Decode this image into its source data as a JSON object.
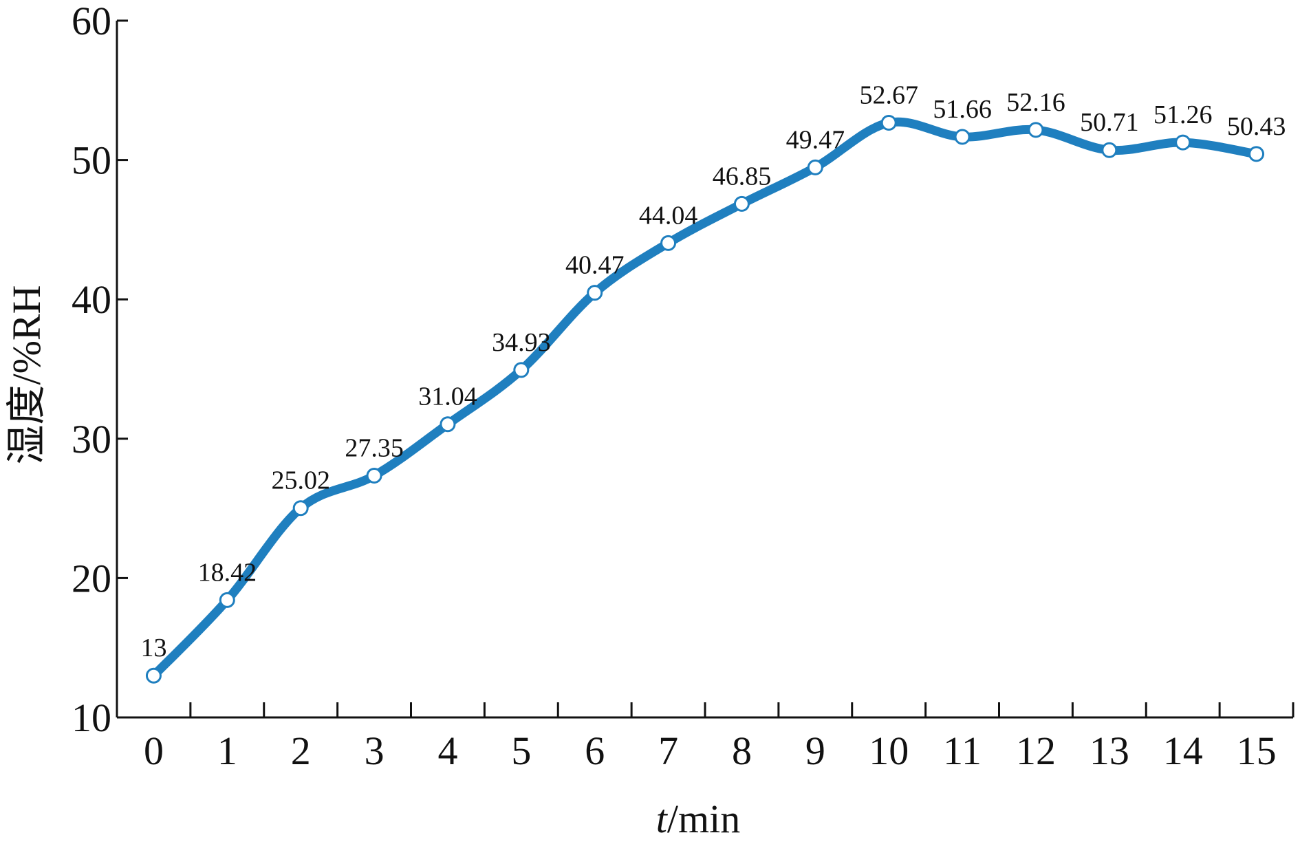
{
  "chart_data": {
    "type": "line",
    "x": [
      0,
      1,
      2,
      3,
      4,
      5,
      6,
      7,
      8,
      9,
      10,
      11,
      12,
      13,
      14,
      15
    ],
    "series": [
      {
        "values": [
          13,
          18.42,
          25.02,
          27.35,
          31.04,
          34.93,
          40.47,
          44.04,
          46.85,
          49.47,
          52.67,
          51.66,
          52.16,
          50.71,
          51.26,
          50.43
        ]
      }
    ],
    "data_labels": [
      "13",
      "18.42",
      "25.02",
      "27.35",
      "31.04",
      "34.93",
      "40.47",
      "44.04",
      "46.85",
      "49.47",
      "52.67",
      "51.66",
      "52.16",
      "50.71",
      "51.26",
      "50.43"
    ],
    "xticks": [
      "0",
      "1",
      "2",
      "3",
      "4",
      "5",
      "6",
      "7",
      "8",
      "9",
      "10",
      "11",
      "12",
      "13",
      "14",
      "15"
    ],
    "yticks": [
      "10",
      "20",
      "30",
      "40",
      "50",
      "60"
    ],
    "ytick_values": [
      10,
      20,
      30,
      40,
      50,
      60
    ],
    "xlabel_italic": "t",
    "xlabel_rest": "/min",
    "ylabel": "湿度/%RH",
    "ylim": [
      10,
      60
    ],
    "xlim": [
      -0.5,
      15.5
    ],
    "grid": false,
    "legend": "none",
    "line_color": "#1f7fbf",
    "marker_fill": "#ffffff",
    "axis_color": "#111111"
  }
}
